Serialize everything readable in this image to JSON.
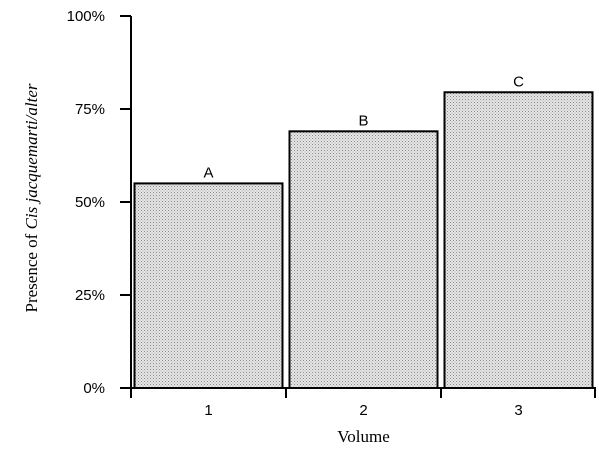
{
  "chart_data": {
    "type": "bar",
    "categories": [
      "1",
      "2",
      "3"
    ],
    "values": [
      55,
      69,
      79.5
    ],
    "bar_labels": [
      "A",
      "B",
      "C"
    ],
    "xlabel": "Volume",
    "ylabel_prefix": "Presence of ",
    "ylabel_italic": "Cis jacquemarti/alter",
    "ylim": [
      0,
      100
    ],
    "yticks": [
      0,
      25,
      50,
      75,
      100
    ],
    "ytick_labels": [
      "0%",
      "25%",
      "50%",
      "75%",
      "100%"
    ],
    "bar_fill": "#d9d9d9",
    "bar_stroke": "#000000",
    "grid": false,
    "legend": "none"
  }
}
